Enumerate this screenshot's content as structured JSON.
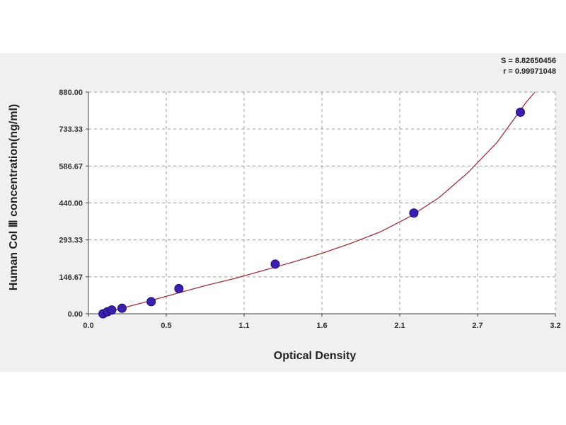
{
  "stats": {
    "s": "S = 8.82650456",
    "r": "r = 0.99971048"
  },
  "chart_data": {
    "type": "scatter",
    "title": "",
    "xlabel": "Optical Density",
    "ylabel": "Human Col Ⅲ concentration(ng/ml)",
    "xlim": [
      0.0,
      3.2
    ],
    "ylim": [
      0.0,
      880.0
    ],
    "x_ticks": [
      "0.0",
      "0.5",
      "1.1",
      "1.6",
      "2.1",
      "2.7",
      "3.2"
    ],
    "y_ticks": [
      "0.00",
      "146.67",
      "293.33",
      "440.00",
      "586.67",
      "733.33",
      "880.00"
    ],
    "grid": true,
    "point_color": "#3a1fb0",
    "curve_color": "#a0303a",
    "points": [
      {
        "x": 0.1,
        "y": 0.0
      },
      {
        "x": 0.13,
        "y": 8.0
      },
      {
        "x": 0.16,
        "y": 15.0
      },
      {
        "x": 0.23,
        "y": 22.0
      },
      {
        "x": 0.43,
        "y": 48.0
      },
      {
        "x": 0.62,
        "y": 100.0
      },
      {
        "x": 1.28,
        "y": 197.0
      },
      {
        "x": 2.23,
        "y": 400.0
      },
      {
        "x": 2.96,
        "y": 800.0
      }
    ],
    "fit_curve": {
      "x": [
        0.08,
        0.2,
        0.4,
        0.6,
        0.8,
        1.0,
        1.2,
        1.4,
        1.6,
        1.8,
        2.0,
        2.2,
        2.4,
        2.6,
        2.8,
        2.9,
        3.0,
        3.06
      ],
      "y": [
        0,
        18,
        48,
        80,
        112,
        140,
        172,
        205,
        240,
        280,
        325,
        385,
        460,
        560,
        680,
        760,
        840,
        880
      ]
    }
  }
}
